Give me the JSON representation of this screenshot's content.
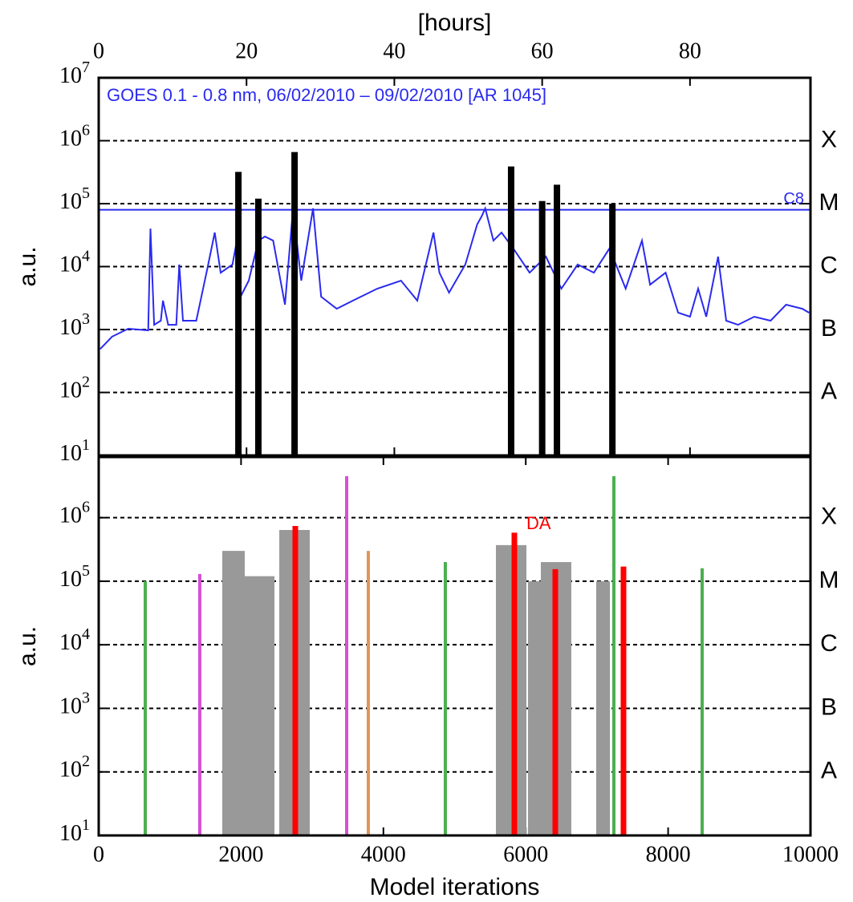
{
  "chart_data": [
    {
      "type": "line",
      "title": "GOES 0.1 - 0.8 nm, 06/02/2010 – 09/02/2010 [AR 1045]",
      "xlabel": "[hours]",
      "ylabel": "a.u.",
      "xlim": [
        0,
        96.3
      ],
      "xticks": [
        0,
        20,
        40,
        60,
        80
      ],
      "log_y": true,
      "grid": true,
      "ylim": [
        10,
        10000000
      ],
      "yticks": [
        {
          "value": 10,
          "label": "10^1"
        },
        {
          "value": 100,
          "label": "10^2"
        },
        {
          "value": 1000,
          "label": "10^3"
        },
        {
          "value": 10000,
          "label": "10^4"
        },
        {
          "value": 100000,
          "label": "10^5"
        },
        {
          "value": 1000000,
          "label": "10^6"
        },
        {
          "value": 10000000,
          "label": "10^7"
        }
      ],
      "y2lim": [
        10,
        10000000
      ],
      "y2ticks": [
        {
          "value": 1000000,
          "label": "X"
        },
        {
          "value": 100000,
          "label": "M"
        },
        {
          "value": 10000,
          "label": "C"
        },
        {
          "value": 1000,
          "label": "B"
        },
        {
          "value": 100,
          "label": "A"
        }
      ],
      "series": [
        {
          "color": "#2a2af0",
          "x": [
            0.2,
            1.8,
            4.0,
            6.7,
            7.0,
            7.5,
            8.4,
            8.7,
            9.4,
            10.5,
            10.9,
            11.4,
            13.2,
            14.7,
            15.7,
            16.5,
            18.1,
            18.7,
            19.2,
            20.3,
            21.6,
            22.5,
            23.6,
            25.2,
            26.3,
            27.4,
            29.0,
            30.1,
            32.2,
            34.4,
            37.7,
            40.9,
            43.1,
            45.3,
            46.1,
            47.4,
            49.6,
            51.2,
            51.8,
            52.3,
            53.4,
            54.5,
            56.1,
            58.3,
            60.5,
            62.6,
            64.8,
            67.0,
            69.1,
            71.3,
            73.5,
            74.6,
            76.7,
            78.4,
            80.0,
            81.1,
            82.2,
            83.8,
            84.9,
            86.5,
            88.7,
            90.9,
            93.0,
            95.2,
            96.1
          ],
          "values": [
            490,
            770,
            1030,
            970,
            40000,
            1190,
            1380,
            2880,
            1190,
            1190,
            10800,
            1380,
            1380,
            9300,
            34800,
            8000,
            10800,
            25900,
            3330,
            5980,
            25900,
            30000,
            25900,
            2480,
            84000,
            5980,
            84000,
            3330,
            2140,
            2880,
            4470,
            5980,
            2880,
            34800,
            8000,
            3850,
            10800,
            46700,
            62500,
            84000,
            25900,
            34800,
            19400,
            8000,
            14400,
            4470,
            10800,
            8000,
            19400,
            4470,
            25900,
            5160,
            8000,
            1850,
            1600,
            4470,
            1600,
            14400,
            1380,
            1190,
            1600,
            1380,
            2480,
            2140,
            1850
          ]
        }
      ],
      "bars": {
        "color": "#000000",
        "x": [
          18.9,
          21.6,
          26.5,
          55.8,
          60.0,
          62.0,
          69.5
        ],
        "values": [
          320000,
          120000,
          660000,
          390000,
          110000,
          200000,
          100000
        ]
      },
      "threshold": {
        "value": 80000,
        "label": "C8",
        "color": "#2a2af0"
      }
    },
    {
      "type": "bar",
      "xlabel": "Model iterations",
      "ylabel": "a.u.",
      "xlim": [
        0,
        10000
      ],
      "xticks": [
        0,
        2000,
        4000,
        6000,
        8000,
        10000
      ],
      "log_y": true,
      "grid": true,
      "ylim": [
        10,
        9000000
      ],
      "yticks": [
        {
          "value": 10,
          "label": "10^1"
        },
        {
          "value": 100,
          "label": "10^2"
        },
        {
          "value": 1000,
          "label": "10^3"
        },
        {
          "value": 10000,
          "label": "10^4"
        },
        {
          "value": 100000,
          "label": "10^5"
        },
        {
          "value": 1000000,
          "label": "10^6"
        }
      ],
      "y2lim": [
        10,
        9000000
      ],
      "y2ticks": [
        {
          "value": 1000000,
          "label": "X"
        },
        {
          "value": 100000,
          "label": "M"
        },
        {
          "value": 10000,
          "label": "C"
        },
        {
          "value": 1000,
          "label": "B"
        },
        {
          "value": 100,
          "label": "A"
        }
      ],
      "blocks": {
        "color": "#999999",
        "x_start": [
          1736,
          2052,
          2537,
          5581,
          6031,
          6212,
          6990
        ],
        "x_end": [
          2052,
          2469,
          2965,
          6009,
          6212,
          6640,
          7182
        ],
        "values": [
          300000,
          120000,
          640000,
          370000,
          100000,
          200000,
          100000
        ]
      },
      "series": [
        {
          "color": "#4caf50",
          "x": [
            654,
            4870,
            7238,
            8478
          ],
          "values": [
            100000,
            200000,
            4500000,
            160000
          ]
        },
        {
          "color": "#d64fd6",
          "x": [
            1420,
            3484
          ],
          "values": [
            130000,
            4500000
          ]
        },
        {
          "color": "#e0955a",
          "x": [
            3788
          ],
          "values": [
            300000
          ]
        },
        {
          "color": "#ff0000",
          "x": [
            2762,
            5840,
            6415,
            7373
          ],
          "values": [
            740000,
            580000,
            155000,
            170000
          ]
        }
      ],
      "annotation": "DA"
    }
  ]
}
